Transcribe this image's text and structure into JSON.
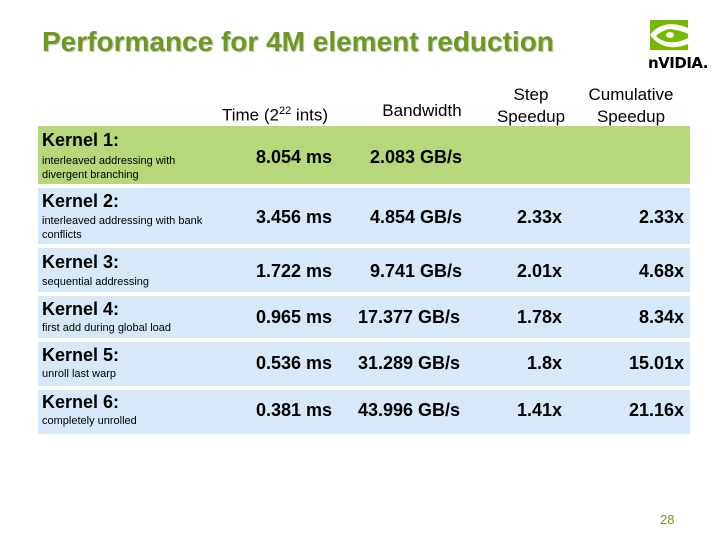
{
  "title": "Performance for 4M element reduction",
  "logo_text": "nVIDIA.",
  "headers": {
    "time_prefix": "Time (2",
    "time_exp": "22",
    "time_suffix": " ints)",
    "bandwidth": "Bandwidth",
    "step_line1": "Step",
    "step_line2": "Speedup",
    "cum_line1": "Cumulative",
    "cum_line2": "Speedup"
  },
  "kernels": [
    {
      "name": "Kernel 1:",
      "desc": "interleaved addressing with divergent branching",
      "time": "8.054 ms",
      "bandwidth": "2.083 GB/s",
      "step": "",
      "cumulative": ""
    },
    {
      "name": "Kernel 2:",
      "desc": "interleaved addressing with bank conflicts",
      "time": "3.456 ms",
      "bandwidth": "4.854 GB/s",
      "step": "2.33x",
      "cumulative": "2.33x"
    },
    {
      "name": "Kernel 3:",
      "desc": "sequential addressing",
      "time": "1.722 ms",
      "bandwidth": "9.741 GB/s",
      "step": "2.01x",
      "cumulative": "4.68x"
    },
    {
      "name": "Kernel 4:",
      "desc": "first add during global load",
      "time": "0.965 ms",
      "bandwidth": "17.377 GB/s",
      "step": "1.78x",
      "cumulative": "8.34x"
    },
    {
      "name": "Kernel 5:",
      "desc": "unroll last warp",
      "time": "0.536 ms",
      "bandwidth": "31.289 GB/s",
      "step": "1.8x",
      "cumulative": "15.01x"
    },
    {
      "name": "Kernel 6:",
      "desc": "completely unrolled",
      "time": "0.381 ms",
      "bandwidth": "43.996 GB/s",
      "step": "1.41x",
      "cumulative": "21.16x"
    }
  ],
  "page_number": "28",
  "colors": {
    "title": "#6b9a1f",
    "row_green": "#b6d77a",
    "row_blue": "#d7e9f8"
  }
}
